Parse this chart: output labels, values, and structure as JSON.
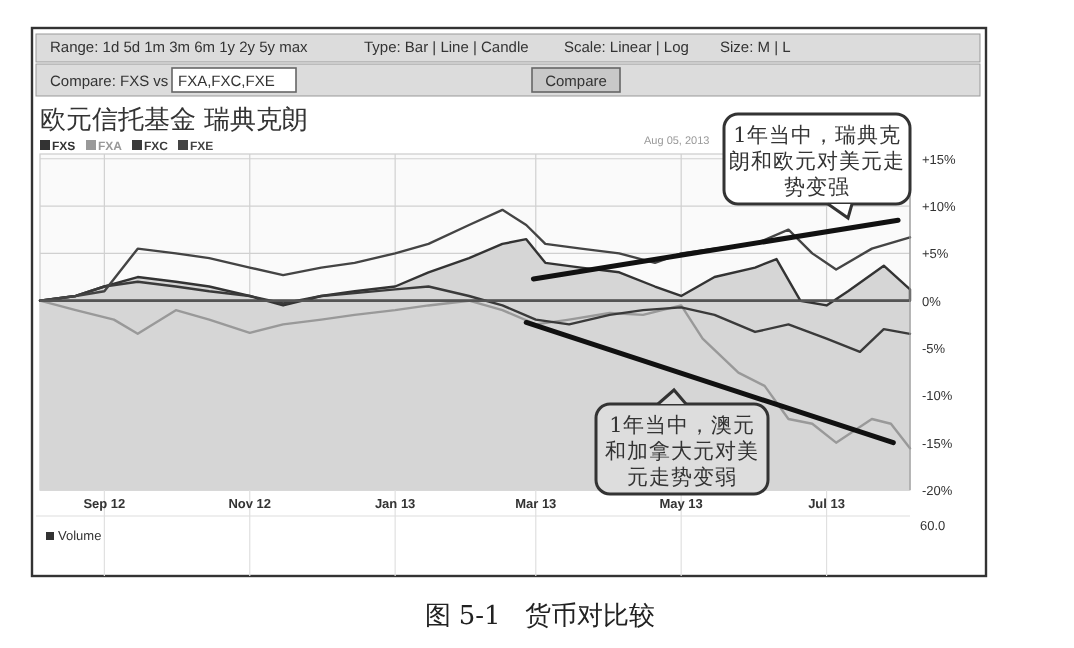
{
  "chart_data": {
    "type": "line",
    "title": "欧元信托基金 瑞典克朗",
    "x": [
      "2012-08-05",
      "2012-08-20",
      "2012-09-01",
      "2012-09-15",
      "2012-10-01",
      "2012-10-15",
      "2012-11-01",
      "2012-11-15",
      "2012-12-01",
      "2012-12-15",
      "2013-01-01",
      "2013-01-15",
      "2013-02-01",
      "2013-02-15",
      "2013-02-25",
      "2013-03-05",
      "2013-03-20",
      "2013-04-05",
      "2013-04-20",
      "2013-05-01",
      "2013-05-15",
      "2013-06-01",
      "2013-06-10",
      "2013-06-20",
      "2013-07-01",
      "2013-07-10",
      "2013-07-25",
      "2013-08-05"
    ],
    "series": [
      {
        "name": "FXS",
        "type": "area",
        "color": "#333333",
        "values": [
          0,
          0.5,
          1.5,
          2.5,
          2,
          1.5,
          0.5,
          -0.5,
          0.5,
          1,
          1.5,
          3,
          4.5,
          6,
          6.5,
          4,
          3.5,
          3,
          1.5,
          0.5,
          2.5,
          3.5,
          4.4,
          0,
          -0.5,
          1,
          3.7,
          1.2
        ]
      },
      {
        "name": "FXA",
        "color": "#999999",
        "x": [
          "2012-08-05",
          "2012-08-20",
          "2012-09-05",
          "2012-09-15",
          "2012-10-01",
          "2012-10-15",
          "2012-11-01",
          "2012-11-15",
          "2012-12-01",
          "2012-12-15",
          "2013-01-01",
          "2013-01-15",
          "2013-02-01",
          "2013-02-15",
          "2013-03-01",
          "2013-03-15",
          "2013-04-01",
          "2013-04-15",
          "2013-05-01",
          "2013-05-10",
          "2013-05-25",
          "2013-06-05",
          "2013-06-15",
          "2013-06-25",
          "2013-07-05",
          "2013-07-20",
          "2013-07-28",
          "2013-08-05"
        ],
        "values": [
          0,
          -1,
          -2,
          -3.5,
          -1,
          -2,
          -3.4,
          -2.5,
          -2,
          -1.5,
          -1,
          -0.5,
          0,
          -1,
          -2.5,
          -2,
          -1.3,
          -1.5,
          -0.5,
          -4,
          -7.6,
          -9,
          -12.5,
          -13,
          -15,
          -12.5,
          -13,
          -15.6
        ]
      },
      {
        "name": "FXC",
        "color": "#3a3a3a",
        "x": [
          "2012-08-05",
          "2012-08-20",
          "2012-09-01",
          "2012-09-15",
          "2012-10-01",
          "2012-10-15",
          "2012-11-01",
          "2012-11-15",
          "2012-12-01",
          "2012-12-15",
          "2013-01-01",
          "2013-01-15",
          "2013-02-01",
          "2013-02-15",
          "2013-03-01",
          "2013-03-15",
          "2013-04-01",
          "2013-04-15",
          "2013-05-01",
          "2013-05-15",
          "2013-06-01",
          "2013-06-15",
          "2013-07-01",
          "2013-07-15",
          "2013-07-25",
          "2013-08-05"
        ],
        "values": [
          0,
          0.5,
          1.5,
          2,
          1.5,
          1,
          0.5,
          -0.3,
          0.5,
          0.8,
          1.2,
          1.5,
          0.5,
          -0.5,
          -2,
          -2.5,
          -1.5,
          -1,
          -0.7,
          -1.5,
          -3.3,
          -2.5,
          -4,
          -5.4,
          -3,
          -3.5
        ]
      },
      {
        "name": "FXE",
        "color": "#444444",
        "x": [
          "2012-08-05",
          "2012-08-20",
          "2012-09-01",
          "2012-09-15",
          "2012-10-01",
          "2012-10-15",
          "2012-11-01",
          "2012-11-15",
          "2012-12-01",
          "2012-12-15",
          "2013-01-01",
          "2013-01-15",
          "2013-02-01",
          "2013-02-15",
          "2013-02-25",
          "2013-03-05",
          "2013-03-20",
          "2013-04-05",
          "2013-04-20",
          "2013-05-01",
          "2013-05-15",
          "2013-06-01",
          "2013-06-15",
          "2013-06-25",
          "2013-07-05",
          "2013-07-20",
          "2013-08-05"
        ],
        "values": [
          0,
          0.5,
          1,
          5.5,
          5,
          4.5,
          3.5,
          2.7,
          3.5,
          4,
          5,
          6,
          8,
          9.6,
          8,
          6,
          5.5,
          5,
          4,
          5,
          5.5,
          6,
          7.5,
          5,
          3.3,
          5.5,
          6.7
        ]
      },
      {
        "type": "line",
        "color": "#111111",
        "x": [
          "2013-02-28",
          "2013-07-31"
        ],
        "values": [
          2.3,
          8.5
        ]
      },
      {
        "type": "line",
        "color": "#111111",
        "x": [
          "2013-02-25",
          "2013-07-29"
        ],
        "values": [
          -2.3,
          -15
        ]
      }
    ],
    "xlim": [
      "2012-08-05",
      "2013-08-05"
    ],
    "xticks": [
      {
        "value": "2012-09-01",
        "label": "Sep 12"
      },
      {
        "value": "2012-11-01",
        "label": "Nov 12"
      },
      {
        "value": "2013-01-01",
        "label": "Jan 13"
      },
      {
        "value": "2013-03-01",
        "label": "Mar 13"
      },
      {
        "value": "2013-05-01",
        "label": "May 13"
      },
      {
        "value": "2013-07-01",
        "label": "Jul 13"
      }
    ],
    "ylim": [
      -20,
      15.5
    ],
    "yticks": [
      {
        "value": -20,
        "label": "-20%"
      },
      {
        "value": -15,
        "label": "-15%"
      },
      {
        "value": -10,
        "label": "-10%"
      },
      {
        "value": -5,
        "label": "-5%"
      },
      {
        "value": 0,
        "label": "0%"
      },
      {
        "value": 5,
        "label": "+5%"
      },
      {
        "value": 10,
        "label": "+10%"
      },
      {
        "value": 15,
        "label": "+15%"
      }
    ],
    "bands": [
      {
        "axis": "y",
        "from": -20,
        "to": 0,
        "color": "#d6d6d6"
      }
    ],
    "ref_lines": [
      {
        "axis": "y",
        "value": 0,
        "color": "#555555"
      }
    ],
    "grid": true,
    "legend": "top left",
    "annotations": [
      "Range: 1d 5d 1m 3m 6m 1y 2y 5y max",
      "Type: Bar | Line | Candle",
      "Scale: Linear | Log",
      "Size: M | L",
      "Compare: FXS vs",
      "FXA,FXC,FXE",
      "Compare",
      "Aug 05, 2013",
      "1年当中，瑞典克朗和欧元对美元走势变强",
      "1年当中，澳元和加拿大元对美元走势变弱",
      "Volume",
      "60.0",
      "图 5-1   货币对比较"
    ]
  }
}
